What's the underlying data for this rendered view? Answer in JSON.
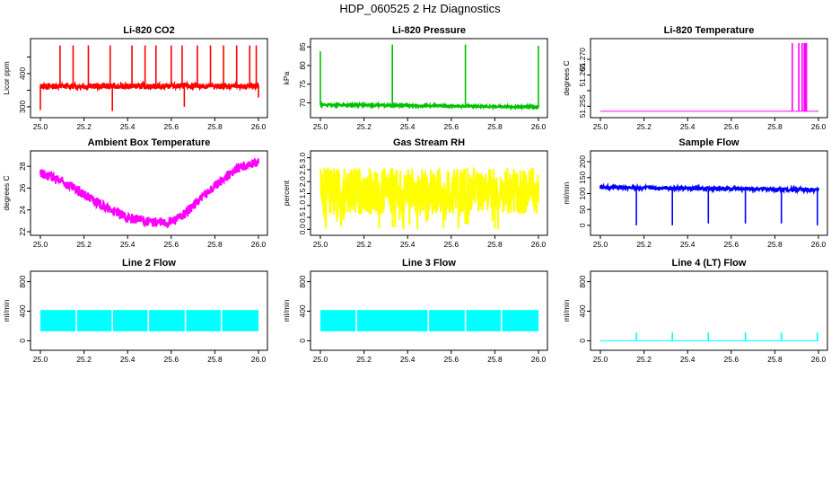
{
  "title": "HDP_060525  2 Hz Diagnostics",
  "chart_data": [
    {
      "type": "line",
      "title": "Li-820 CO2",
      "ylabel": "Licor ppm",
      "color": "#ff0000",
      "xlim": [
        25.0,
        26.0
      ],
      "ylim": [
        278,
        492
      ],
      "xticks": [
        "25.0",
        "25.2",
        "25.4",
        "25.6",
        "25.8",
        "26.0"
      ],
      "yticks": [
        300,
        350,
        400,
        450
      ],
      "ytick_labels": [
        "300",
        "",
        "400",
        ""
      ],
      "baseline": [
        [
          25.0,
          362
        ],
        [
          26.0,
          362
        ]
      ],
      "band": 8,
      "spikes_up": [
        [
          25.09,
          485
        ],
        [
          25.15,
          485
        ],
        [
          25.22,
          485
        ],
        [
          25.32,
          485
        ],
        [
          25.42,
          485
        ],
        [
          25.48,
          485
        ],
        [
          25.53,
          485
        ],
        [
          25.6,
          485
        ],
        [
          25.65,
          485
        ],
        [
          25.72,
          485
        ],
        [
          25.78,
          485
        ],
        [
          25.84,
          485
        ],
        [
          25.9,
          485
        ],
        [
          25.96,
          485
        ],
        [
          25.99,
          485
        ]
      ],
      "spikes_down": [
        [
          25.0,
          290
        ],
        [
          25.33,
          287
        ],
        [
          25.66,
          300
        ],
        [
          26.0,
          328
        ]
      ]
    },
    {
      "type": "line",
      "title": "Li-820 Pressure",
      "ylabel": "kPa",
      "color": "#00c000",
      "xlim": [
        25.0,
        26.0
      ],
      "ylim": [
        67,
        86
      ],
      "xticks": [
        "25.0",
        "25.2",
        "25.4",
        "25.6",
        "25.8",
        "26.0"
      ],
      "yticks": [
        70,
        75,
        80,
        85
      ],
      "ytick_labels": [
        "70",
        "75",
        "80",
        "85"
      ],
      "baseline": [
        [
          25.0,
          69.5
        ],
        [
          25.33,
          69.3
        ],
        [
          25.66,
          69.1
        ],
        [
          26.0,
          68.9
        ]
      ],
      "band": 0.25,
      "spikes_up": [
        [
          25.0,
          83.8
        ],
        [
          25.33,
          85.6
        ],
        [
          25.665,
          85.6
        ],
        [
          26.0,
          85.3
        ]
      ],
      "spikes_down": []
    },
    {
      "type": "line",
      "title": "Li-820 Temperature",
      "ylabel": "degrees C",
      "color": "#ff00ff",
      "xlim": [
        25.0,
        26.0
      ],
      "ylim": [
        51.2525,
        51.2752
      ],
      "xticks": [
        "25.0",
        "25.2",
        "25.4",
        "25.6",
        "25.8",
        "26.0"
      ],
      "yticks": [
        51.255,
        51.26,
        51.265,
        51.27
      ],
      "ytick_labels": [
        "51.255",
        "",
        "51.265",
        "51.270"
      ],
      "baseline": [
        [
          25.0,
          51.2534
        ],
        [
          26.0,
          51.2534
        ]
      ],
      "band": 0,
      "spikes_up": [
        [
          25.88,
          51.2752
        ],
        [
          25.91,
          51.2752
        ],
        [
          25.925,
          51.2752
        ],
        [
          25.935,
          51.2752
        ],
        [
          25.94,
          51.2752
        ],
        [
          25.945,
          51.2752
        ]
      ],
      "spikes_down": []
    },
    {
      "type": "line",
      "title": "Ambient Box Temperature",
      "ylabel": "degrees C",
      "color": "#ff00ff",
      "xlim": [
        25.0,
        26.0
      ],
      "ylim": [
        22.0,
        29.0
      ],
      "xticks": [
        "25.0",
        "25.2",
        "25.4",
        "25.6",
        "25.8",
        "26.0"
      ],
      "yticks": [
        22,
        24,
        26,
        28
      ],
      "ytick_labels": [
        "22",
        "24",
        "26",
        "28"
      ],
      "baseline": [
        [
          25.0,
          27.4
        ],
        [
          25.1,
          26.6
        ],
        [
          25.2,
          25.4
        ],
        [
          25.3,
          24.2
        ],
        [
          25.4,
          23.3
        ],
        [
          25.5,
          22.9
        ],
        [
          25.58,
          22.8
        ],
        [
          25.65,
          23.4
        ],
        [
          25.7,
          24.4
        ],
        [
          25.8,
          26.2
        ],
        [
          25.9,
          27.8
        ],
        [
          26.0,
          28.4
        ]
      ],
      "band": 0.45,
      "spikes_up": [],
      "spikes_down": []
    },
    {
      "type": "line",
      "title": "Gas Stream RH",
      "ylabel": "percent",
      "color": "#ffff00",
      "xlim": [
        25.0,
        26.0
      ],
      "ylim": [
        -0.1,
        3.1
      ],
      "xticks": [
        "25.0",
        "25.2",
        "25.4",
        "25.6",
        "25.8",
        "26.0"
      ],
      "yticks": [
        0.0,
        0.5,
        1.0,
        1.5,
        2.0,
        2.5,
        3.0
      ],
      "ytick_labels": [
        "0.0",
        "0.5",
        "1.0",
        "1.5",
        "2.0",
        "2.5",
        "3.0"
      ],
      "baseline": [
        [
          25.0,
          1.6
        ],
        [
          26.0,
          1.6
        ]
      ],
      "band": 0.55,
      "noise": [
        0.0,
        2.9
      ],
      "spikes_up": [],
      "spikes_down": []
    },
    {
      "type": "line",
      "title": "Sample Flow",
      "ylabel": "ml/min",
      "color": "#0000ff",
      "xlim": [
        25.0,
        26.0
      ],
      "ylim": [
        -0.1,
        1.1
      ],
      "xticks": [
        "25.0",
        "25.2",
        "25.4",
        "25.6",
        "25.8",
        "26.0"
      ],
      "yticks": [
        0.0,
        0.25,
        0.5,
        0.75,
        1.0
      ],
      "ytick_labels": [
        "0",
        "50",
        "100",
        "150",
        "200"
      ],
      "baseline": [
        [
          25.0,
          0.6
        ],
        [
          26.0,
          0.56
        ]
      ],
      "band": 0.03,
      "spikes_up": [],
      "spikes_down": [
        [
          25.165,
          0.0
        ],
        [
          25.33,
          0.0
        ],
        [
          25.495,
          0.03
        ],
        [
          25.665,
          0.03
        ],
        [
          25.83,
          0.03
        ],
        [
          25.995,
          0.0
        ]
      ]
    },
    {
      "type": "line",
      "title": "Line 2 Flow",
      "ylabel": "ml/min",
      "color": "#00ffff",
      "xlim": [
        25.0,
        26.0
      ],
      "ylim": [
        -0.1,
        1.1
      ],
      "xticks": [
        "25.0",
        "25.2",
        "25.4",
        "25.6",
        "25.8",
        "26.0"
      ],
      "yticks": [
        0.0,
        0.5,
        1.0
      ],
      "ytick_labels": [
        "0",
        "400",
        "800"
      ],
      "band_range": [
        0.16,
        0.52
      ],
      "gaps": [
        25.165,
        25.33,
        25.495,
        25.665,
        25.83
      ]
    },
    {
      "type": "line",
      "title": "Line 3 Flow",
      "ylabel": "ml/min",
      "color": "#00ffff",
      "xlim": [
        25.0,
        26.0
      ],
      "ylim": [
        -0.1,
        1.1
      ],
      "xticks": [
        "25.0",
        "25.2",
        "25.4",
        "25.6",
        "25.8",
        "26.0"
      ],
      "yticks": [
        0.0,
        0.5,
        1.0
      ],
      "ytick_labels": [
        "0",
        "400",
        "800"
      ],
      "band_range": [
        0.16,
        0.52
      ],
      "gaps": [
        25.165,
        25.495,
        25.665,
        25.83
      ]
    },
    {
      "type": "line",
      "title": "Line 4 (LT) Flow",
      "ylabel": "ml/min",
      "color": "#00ffff",
      "xlim": [
        25.0,
        26.0
      ],
      "ylim": [
        -0.1,
        1.1
      ],
      "xticks": [
        "25.0",
        "25.2",
        "25.4",
        "25.6",
        "25.8",
        "26.0"
      ],
      "yticks": [
        0.0,
        0.5,
        1.0
      ],
      "ytick_labels": [
        "0",
        "400",
        "800"
      ],
      "baseline": [
        [
          25.0,
          0.0
        ],
        [
          26.0,
          0.0
        ]
      ],
      "band": 0,
      "spikes_up": [
        [
          25.165,
          0.14
        ],
        [
          25.33,
          0.14
        ],
        [
          25.495,
          0.14
        ],
        [
          25.665,
          0.14
        ],
        [
          25.83,
          0.14
        ],
        [
          25.995,
          0.14
        ]
      ],
      "spikes_down": []
    }
  ]
}
